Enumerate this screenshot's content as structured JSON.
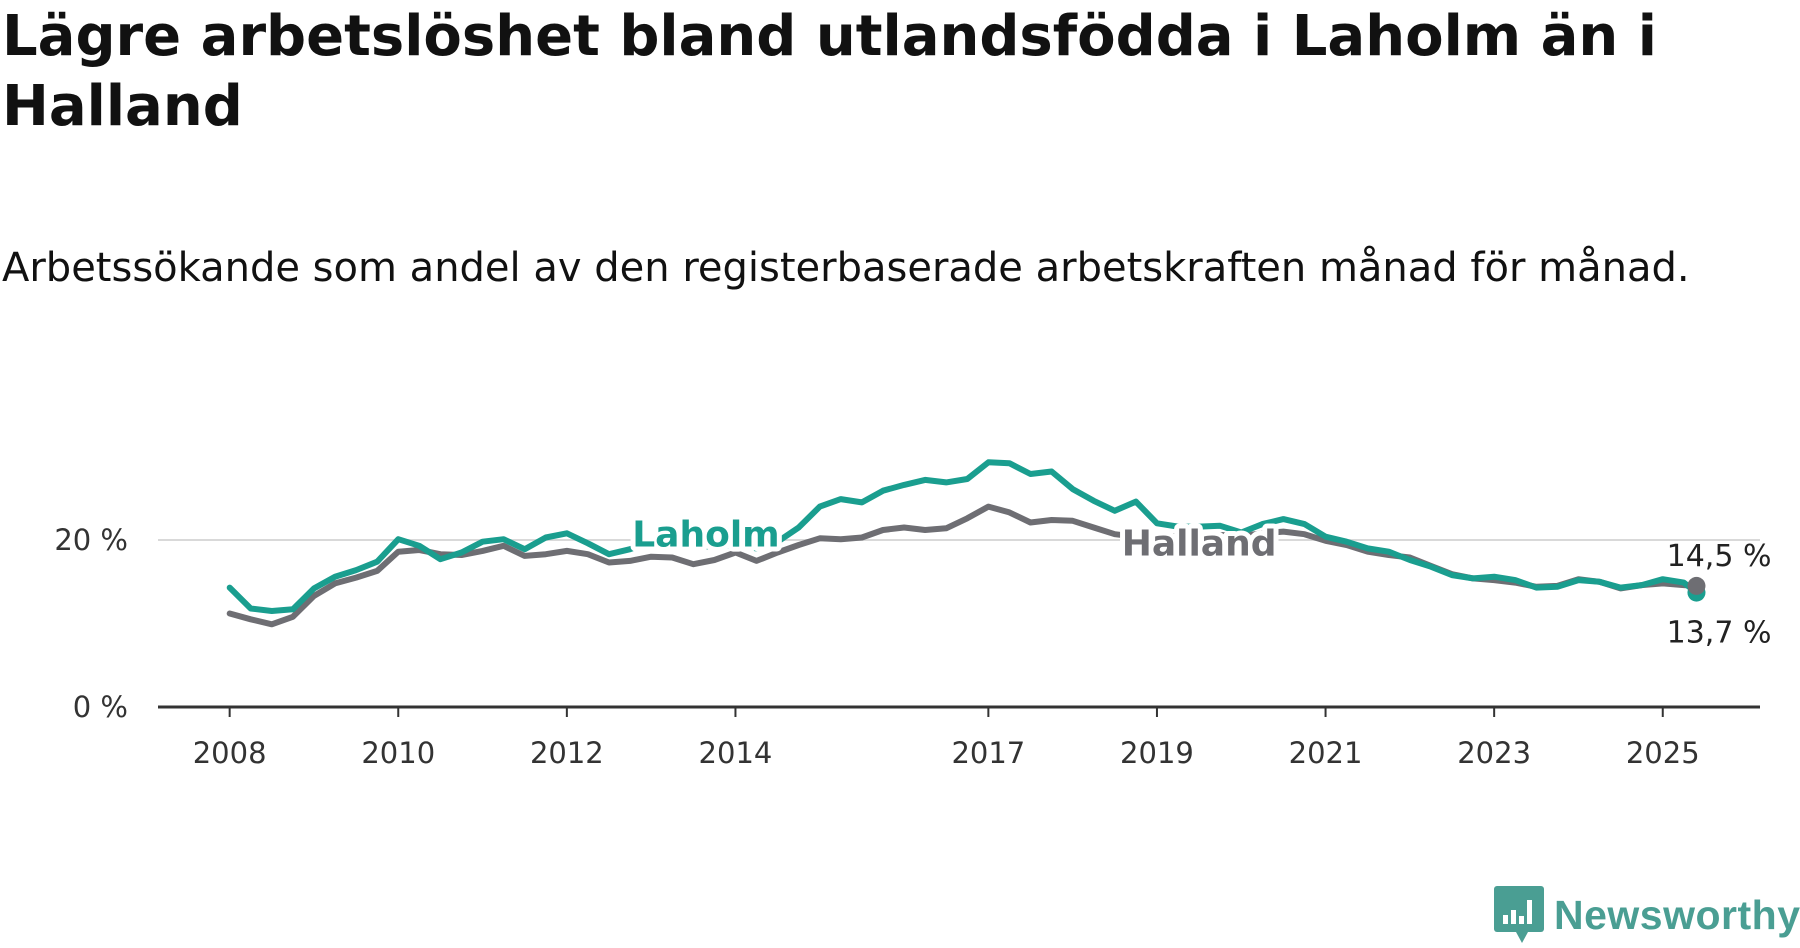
{
  "title": "Lägre arbetslöshet bland utlandsfödda i Laholm än i Halland",
  "subtitle": "Arbetssökande som andel av den registerbaserade arbetskraften månad för månad.",
  "brand": {
    "name": "Newsworthy",
    "color": "#4a9e93",
    "icon": "newsworthy-logo-icon"
  },
  "chart_data": {
    "type": "line",
    "title": "Lägre arbetslöshet bland utlandsfödda i Laholm än i Halland",
    "subtitle": "Arbetssökande som andel av den registerbaserade arbetskraften månad för månad.",
    "xlabel": "",
    "ylabel": "",
    "xlim": [
      2008.0,
      2026.1
    ],
    "ylim": [
      0,
      30
    ],
    "x_ticks": [
      {
        "value": 2008,
        "label": "2008"
      },
      {
        "value": 2010,
        "label": "2010"
      },
      {
        "value": 2012,
        "label": "2012"
      },
      {
        "value": 2014,
        "label": "2014"
      },
      {
        "value": 2017,
        "label": "2017"
      },
      {
        "value": 2019,
        "label": "2019"
      },
      {
        "value": 2021,
        "label": "2021"
      },
      {
        "value": 2023,
        "label": "2023"
      },
      {
        "value": 2025,
        "label": "2025"
      }
    ],
    "y_ticks": [
      {
        "value": 0,
        "label": "0 %"
      },
      {
        "value": 20,
        "label": "20 %"
      }
    ],
    "grid": "horizontal",
    "x": [
      2008.0,
      2008.25,
      2008.5,
      2008.75,
      2009.0,
      2009.25,
      2009.5,
      2009.75,
      2010.0,
      2010.25,
      2010.5,
      2010.75,
      2011.0,
      2011.25,
      2011.5,
      2011.75,
      2012.0,
      2012.25,
      2012.5,
      2012.75,
      2013.0,
      2013.25,
      2013.5,
      2013.75,
      2014.0,
      2014.25,
      2014.5,
      2014.75,
      2015.0,
      2015.25,
      2015.5,
      2015.75,
      2016.0,
      2016.25,
      2016.5,
      2016.75,
      2017.0,
      2017.25,
      2017.5,
      2017.75,
      2018.0,
      2018.25,
      2018.5,
      2018.75,
      2019.0,
      2019.25,
      2019.5,
      2019.75,
      2020.0,
      2020.25,
      2020.5,
      2020.75,
      2021.0,
      2021.25,
      2021.5,
      2021.75,
      2022.0,
      2022.25,
      2022.5,
      2022.75,
      2023.0,
      2023.25,
      2023.5,
      2023.75,
      2024.0,
      2024.25,
      2024.5,
      2024.75,
      2025.0,
      2025.25,
      2025.4
    ],
    "series": [
      {
        "name": "Laholm",
        "color": "#1a9e8f",
        "end_label": "13,7 %",
        "values": [
          14.3,
          11.8,
          11.5,
          11.7,
          14.2,
          15.6,
          16.4,
          17.4,
          20.1,
          19.3,
          17.7,
          18.5,
          19.8,
          20.1,
          18.9,
          20.3,
          20.8,
          19.6,
          18.3,
          18.9,
          19.8,
          20.1,
          19.3,
          19.2,
          19.4,
          19.0,
          19.8,
          21.5,
          24.0,
          24.9,
          24.5,
          25.9,
          26.6,
          27.2,
          26.9,
          27.3,
          29.3,
          29.2,
          27.9,
          28.2,
          26.1,
          24.7,
          23.5,
          24.6,
          22.0,
          21.6,
          21.6,
          21.7,
          20.9,
          21.9,
          22.5,
          21.9,
          20.4,
          19.8,
          19.0,
          18.6,
          17.6,
          16.8,
          15.8,
          15.4,
          15.6,
          15.2,
          14.3,
          14.4,
          15.2,
          15.0,
          14.3,
          14.6,
          15.3,
          14.9,
          13.7
        ]
      },
      {
        "name": "Halland",
        "color": "#6e6e73",
        "end_label": "14,5 %",
        "values": [
          11.2,
          10.5,
          9.9,
          10.8,
          13.3,
          14.8,
          15.5,
          16.3,
          18.6,
          18.8,
          18.3,
          18.2,
          18.7,
          19.3,
          18.1,
          18.3,
          18.7,
          18.3,
          17.3,
          17.5,
          18.0,
          17.9,
          17.1,
          17.6,
          18.5,
          17.5,
          18.5,
          19.4,
          20.2,
          20.1,
          20.3,
          21.2,
          21.5,
          21.2,
          21.4,
          22.6,
          24.0,
          23.3,
          22.1,
          22.4,
          22.3,
          21.5,
          20.7,
          20.4,
          20.3,
          20.5,
          20.4,
          20.6,
          20.5,
          20.8,
          21.0,
          20.7,
          19.9,
          19.4,
          18.6,
          18.2,
          17.9,
          16.9,
          15.9,
          15.4,
          15.2,
          14.9,
          14.4,
          14.5,
          15.3,
          15.0,
          14.2,
          14.6,
          14.8,
          14.6,
          14.5
        ]
      }
    ],
    "series_labels": [
      {
        "series": "Laholm",
        "text": "Laholm",
        "at": {
          "x": 2013.65,
          "y": 20.8
        }
      },
      {
        "series": "Halland",
        "text": "Halland",
        "at": {
          "x": 2019.5,
          "y": 19.7
        }
      }
    ]
  }
}
